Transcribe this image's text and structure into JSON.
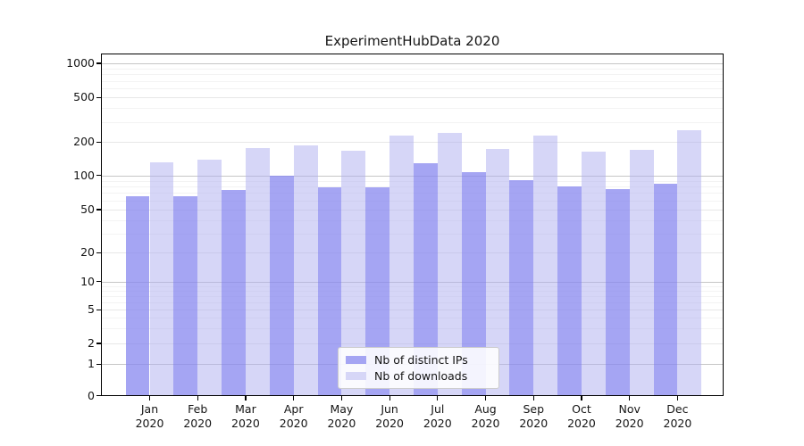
{
  "chart_data": {
    "type": "bar",
    "title": "ExperimentHubData 2020",
    "categories": [
      "Jan 2020",
      "Feb 2020",
      "Mar 2020",
      "Apr 2020",
      "May 2020",
      "Jun 2020",
      "Jul 2020",
      "Aug 2020",
      "Sep 2020",
      "Oct 2020",
      "Nov 2020",
      "Dec 2020"
    ],
    "series": [
      {
        "name": "Nb of distinct IPs",
        "color": "#a5a5f3",
        "values": [
          66,
          66,
          75,
          100,
          79,
          79,
          130,
          108,
          91,
          80,
          76,
          85
        ]
      },
      {
        "name": "Nb of downloads",
        "color": "#d6d6f7",
        "values": [
          131,
          139,
          177,
          188,
          166,
          229,
          240,
          172,
          230,
          164,
          171,
          257
        ]
      }
    ],
    "y_ticks": [
      0,
      1,
      2,
      5,
      10,
      20,
      50,
      100,
      200,
      500,
      1000
    ],
    "y_scale": "log1p",
    "ylim": [
      0,
      1400
    ],
    "grid": "horizontal, major and minor",
    "legend_position": "lower center inside plot",
    "xlabel": "",
    "ylabel": ""
  }
}
